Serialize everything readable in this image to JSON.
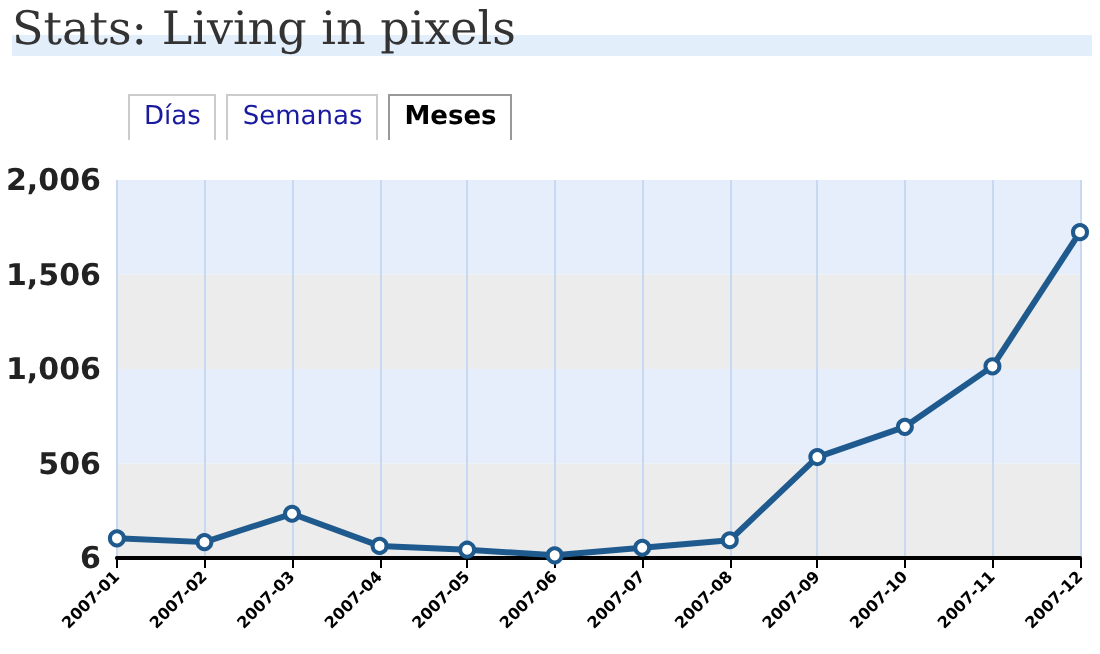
{
  "chart_data": {
    "type": "line",
    "title": "Stats: Living in pixels",
    "annotations": [
      "Días",
      "Semanas",
      "Meses"
    ],
    "categories": [
      "2007-01",
      "2007-02",
      "2007-03",
      "2007-04",
      "2007-05",
      "2007-06",
      "2007-07",
      "2007-08",
      "2007-09",
      "2007-10",
      "2007-11",
      "2007-12"
    ],
    "series": [
      {
        "color": "#1f5a8e",
        "values": [
          110,
          90,
          240,
          70,
          50,
          20,
          60,
          100,
          540,
          700,
          1020,
          1730
        ]
      }
    ],
    "ylim": [
      6,
      2006
    ],
    "yticks": [
      {
        "value": 6,
        "label": "6"
      },
      {
        "value": 506,
        "label": "506"
      },
      {
        "value": 1006,
        "label": "1,006"
      },
      {
        "value": 1506,
        "label": "1,506"
      },
      {
        "value": 2006,
        "label": "2,006"
      }
    ],
    "grid": "x",
    "marker": "circle",
    "line_style": "solid"
  }
}
